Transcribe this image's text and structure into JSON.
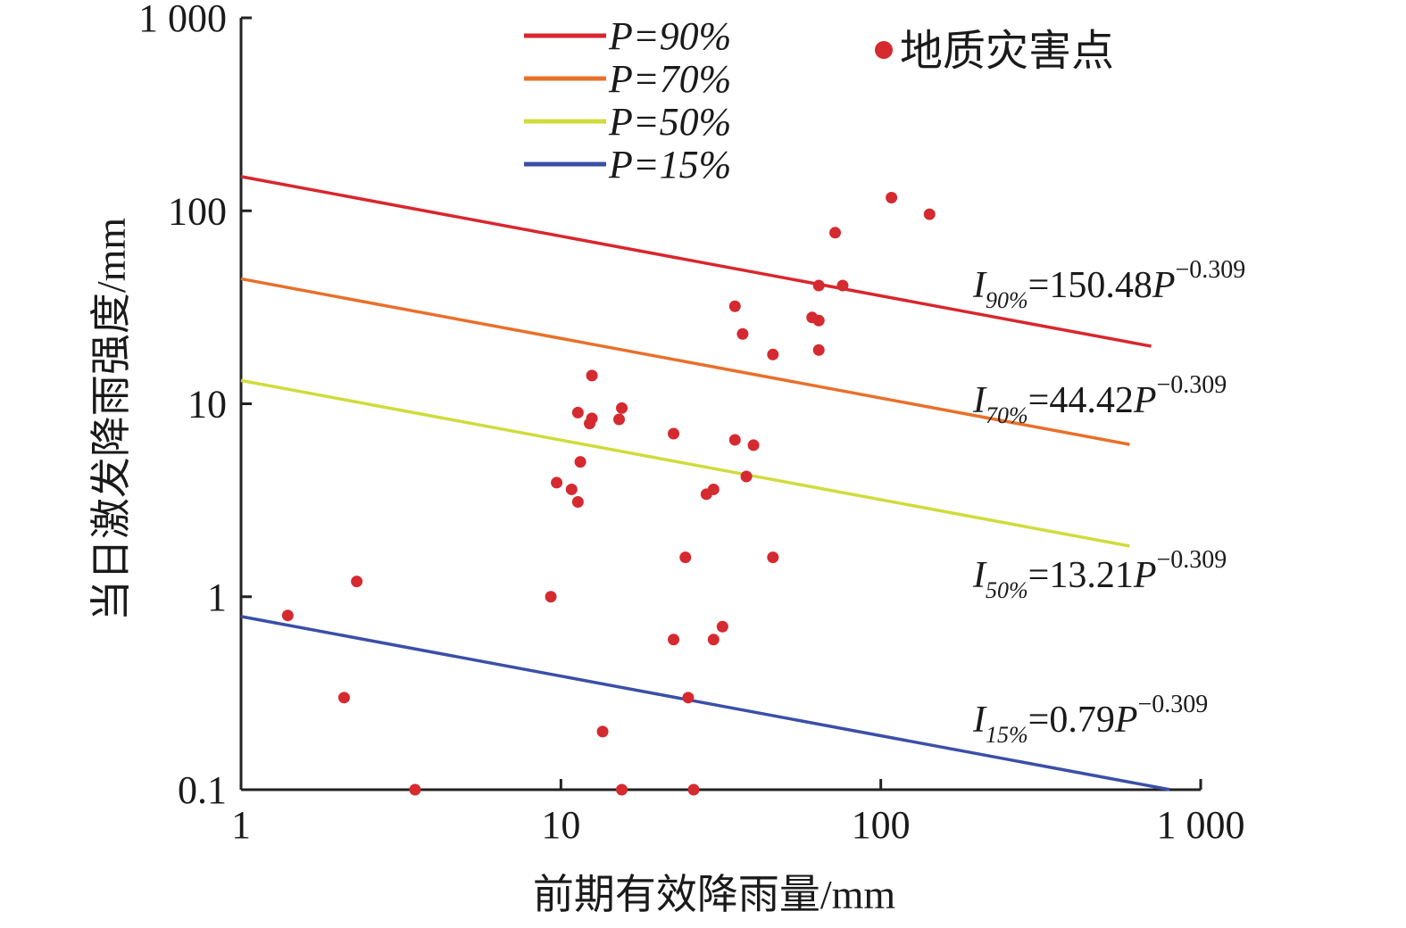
{
  "chart_data": {
    "type": "scatter",
    "x_scale": "log",
    "y_scale": "log",
    "xlim": [
      1,
      1000
    ],
    "ylim": [
      0.1,
      1000
    ],
    "xlabel": "前期有效降雨量/mm",
    "ylabel": "当日激发降雨强度/mm",
    "x_ticks": [
      {
        "value": 1,
        "label": "1"
      },
      {
        "value": 10,
        "label": "10"
      },
      {
        "value": 100,
        "label": "100"
      },
      {
        "value": 1000,
        "label": "1 000"
      }
    ],
    "y_ticks": [
      {
        "value": 0.1,
        "label": "0.1"
      },
      {
        "value": 1,
        "label": "1"
      },
      {
        "value": 10,
        "label": "10"
      },
      {
        "value": 100,
        "label": "100"
      },
      {
        "value": 1000,
        "label": "1 000"
      }
    ],
    "lines": [
      {
        "name": "P=90%",
        "legend": "P=90%",
        "color": "#d9262e",
        "coef": 150.48,
        "exponent": -0.309,
        "x_range": [
          1,
          700
        ],
        "eq_base": "I",
        "eq_sub": "90%",
        "eq_main": "=150.48",
        "eq_var": "P",
        "eq_sup": "−0.309"
      },
      {
        "name": "P=70%",
        "legend": "P=70%",
        "color": "#e8702a",
        "coef": 44.42,
        "exponent": -0.309,
        "x_range": [
          1,
          600
        ],
        "eq_base": "I",
        "eq_sub": "70%",
        "eq_main": "=44.42",
        "eq_var": "P",
        "eq_sup": "−0.309"
      },
      {
        "name": "P=50%",
        "legend": "P=50%",
        "color": "#cfdc3c",
        "coef": 13.21,
        "exponent": -0.309,
        "x_range": [
          1,
          600
        ],
        "eq_base": "I",
        "eq_sub": "50%",
        "eq_main": "=13.21",
        "eq_var": "P",
        "eq_sup": "−0.309"
      },
      {
        "name": "P=15%",
        "legend": "P=15%",
        "color": "#3b4fa8",
        "coef": 0.79,
        "exponent": -0.309,
        "x_range": [
          1,
          800
        ],
        "eq_base": "I",
        "eq_sub": "15%",
        "eq_main": "=0.79",
        "eq_var": "P",
        "eq_sup": "−0.309"
      }
    ],
    "scatter": {
      "name": "地质灾害点",
      "color": "#d42a30",
      "points": [
        [
          108,
          117
        ],
        [
          142,
          96
        ],
        [
          72,
          77
        ],
        [
          64,
          41
        ],
        [
          76,
          41
        ],
        [
          35,
          32
        ],
        [
          61,
          28
        ],
        [
          64,
          27
        ],
        [
          37,
          23
        ],
        [
          64,
          19
        ],
        [
          46,
          18
        ],
        [
          12.5,
          14
        ],
        [
          15.5,
          9.5
        ],
        [
          11.3,
          9
        ],
        [
          15.2,
          8.3
        ],
        [
          12.5,
          8.4
        ],
        [
          12.3,
          7.9
        ],
        [
          22.5,
          7
        ],
        [
          35,
          6.5
        ],
        [
          40,
          6.1
        ],
        [
          11.5,
          5
        ],
        [
          38,
          4.2
        ],
        [
          9.7,
          3.9
        ],
        [
          10.8,
          3.6
        ],
        [
          30,
          3.6
        ],
        [
          28.5,
          3.4
        ],
        [
          11.3,
          3.1
        ],
        [
          24.5,
          1.6
        ],
        [
          46,
          1.6
        ],
        [
          2.3,
          1.2
        ],
        [
          9.3,
          1.0
        ],
        [
          1.4,
          0.8
        ],
        [
          32,
          0.7
        ],
        [
          22.5,
          0.6
        ],
        [
          30,
          0.6
        ],
        [
          2.1,
          0.3
        ],
        [
          25,
          0.3
        ],
        [
          13.5,
          0.2
        ],
        [
          3.5,
          0.1
        ],
        [
          15.5,
          0.1
        ],
        [
          26,
          0.1
        ]
      ]
    }
  }
}
